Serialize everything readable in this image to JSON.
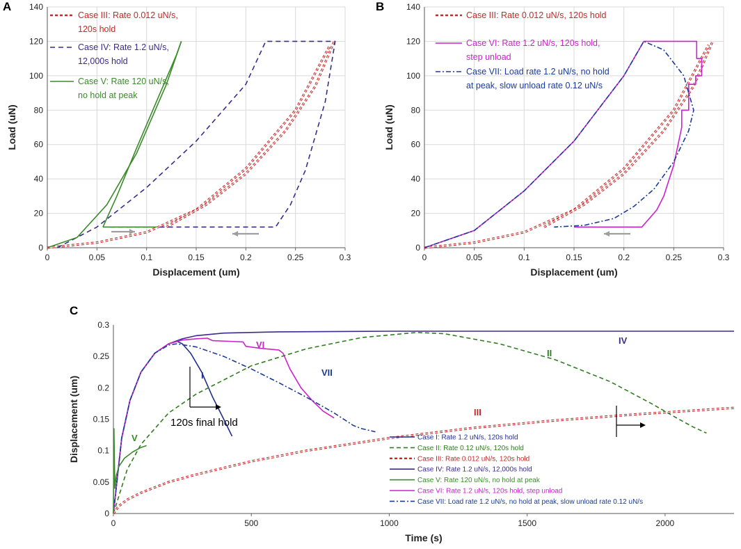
{
  "figure": {
    "colors": {
      "case1": "#1f2f8f",
      "case2": "#2e7d1e",
      "case3": "#c62828",
      "case4": "#3c2a8c",
      "case5": "#3a8a2a",
      "case6": "#cc22cc",
      "case7": "#1a3a9a",
      "arrow_gray": "#9e9e9e",
      "grid": "#d9d9d9"
    }
  },
  "chart_data": [
    {
      "panel": "A",
      "type": "line",
      "xlabel": "Displacement (um)",
      "ylabel": "Load (uN)",
      "xlim": [
        0,
        0.3
      ],
      "ylim": [
        0,
        140
      ],
      "xticks": [
        "0",
        "0.05",
        "0.1",
        "0.15",
        "0.2",
        "0.25",
        "0.3"
      ],
      "yticks": [
        "0",
        "20",
        "40",
        "60",
        "80",
        "100",
        "120",
        "140"
      ],
      "legend": [
        {
          "line1": "Case III: Rate 0.012 uN/s,",
          "line2": "120s hold",
          "series": "III"
        },
        {
          "line1": "Case IV: Rate 1.2 uN/s,",
          "line2": "12,000s hold",
          "series": "IV"
        },
        {
          "line1": "Case V: Rate 120 uN/s,",
          "line2": "no hold at peak",
          "series": "V"
        }
      ],
      "series": [
        {
          "name": "Case III load",
          "style": "III",
          "x": [
            0,
            0.05,
            0.1,
            0.15,
            0.2,
            0.25,
            0.285
          ],
          "y": [
            0,
            3,
            9,
            22,
            46,
            80,
            118
          ]
        },
        {
          "name": "Case III unload",
          "style": "III",
          "x": [
            0.12,
            0.16,
            0.2,
            0.24,
            0.27,
            0.289
          ],
          "y": [
            12,
            25,
            43,
            68,
            94,
            120
          ]
        },
        {
          "name": "Case IV",
          "style": "IV",
          "x": [
            0.01,
            0.05,
            0.1,
            0.15,
            0.2,
            0.22,
            0.29,
            0.28,
            0.26,
            0.245,
            0.23,
            0.06
          ],
          "y": [
            0,
            12,
            35,
            62,
            95,
            120,
            120,
            85,
            45,
            25,
            12,
            12
          ]
        },
        {
          "name": "Case V load",
          "style": "V",
          "x": [
            0,
            0.03,
            0.06,
            0.09,
            0.12,
            0.135
          ],
          "y": [
            0,
            6,
            25,
            55,
            95,
            120
          ]
        },
        {
          "name": "Case V unload",
          "style": "V",
          "x": [
            0.056,
            0.07,
            0.09,
            0.11,
            0.13,
            0.135
          ],
          "y": [
            12,
            30,
            58,
            85,
            112,
            120
          ]
        },
        {
          "name": "Case V hold",
          "style": "V",
          "x": [
            0.056,
            0.11
          ],
          "y": [
            12,
            12
          ]
        }
      ]
    },
    {
      "panel": "B",
      "type": "line",
      "xlabel": "Displacement (um)",
      "ylabel": "Load (uN)",
      "xlim": [
        0,
        0.3
      ],
      "ylim": [
        0,
        140
      ],
      "xticks": [
        "0",
        "0.05",
        "0.1",
        "0.15",
        "0.2",
        "0.25",
        "0.3"
      ],
      "yticks": [
        "0",
        "20",
        "40",
        "60",
        "80",
        "100",
        "120",
        "140"
      ],
      "legend": [
        {
          "line1": "Case III: Rate 0.012 uN/s, 120s hold",
          "line2": "",
          "series": "III"
        },
        {
          "line1": "Case VI: Rate 1.2 uN/s, 120s hold,",
          "line2": "step unload",
          "series": "VI"
        },
        {
          "line1": "Case VII: Load rate 1.2 uN/s, no hold",
          "line2": "at peak, slow unload rate 0.12 uN/s",
          "series": "VII"
        }
      ],
      "series": [
        {
          "name": "Case III load",
          "style": "III",
          "x": [
            0,
            0.05,
            0.1,
            0.15,
            0.2,
            0.25,
            0.285
          ],
          "y": [
            0,
            3,
            9,
            22,
            46,
            80,
            118
          ]
        },
        {
          "name": "Case III unload",
          "style": "III",
          "x": [
            0.12,
            0.16,
            0.2,
            0.24,
            0.27,
            0.289
          ],
          "y": [
            12,
            25,
            43,
            68,
            94,
            120
          ]
        },
        {
          "name": "Case VI",
          "style": "VI",
          "x": [
            0,
            0.05,
            0.1,
            0.15,
            0.2,
            0.22,
            0.273,
            0.273,
            0.278,
            0.278,
            0.272,
            0.272,
            0.265,
            0.265,
            0.258,
            0.258,
            0.25,
            0.24,
            0.233,
            0.218,
            0.15
          ],
          "y": [
            0,
            10,
            33,
            62,
            100,
            120,
            120,
            110,
            110,
            100,
            100,
            95,
            95,
            80,
            80,
            70,
            48,
            30,
            22,
            12,
            12
          ]
        },
        {
          "name": "Case VII",
          "style": "VII",
          "x": [
            0,
            0.05,
            0.1,
            0.15,
            0.2,
            0.22,
            0.24,
            0.26,
            0.27,
            0.265,
            0.25,
            0.23,
            0.21,
            0.19,
            0.16,
            0.13
          ],
          "y": [
            0,
            10,
            33,
            62,
            100,
            120,
            115,
            100,
            80,
            68,
            50,
            34,
            24,
            17,
            13,
            12
          ]
        }
      ]
    },
    {
      "panel": "C",
      "type": "line",
      "xlabel": "Time (s)",
      "ylabel": "Displacement (um)",
      "xlim": [
        0,
        2250
      ],
      "ylim": [
        0,
        0.3
      ],
      "xticks": [
        "0",
        "500",
        "1000",
        "1500",
        "2000"
      ],
      "yticks": [
        "0",
        "0.05",
        "0.1",
        "0.15",
        "0.2",
        "0.25",
        "0.3"
      ],
      "legend": [
        {
          "line1": "Case I: Rate 1.2 uN/s, 120s hold",
          "series": "I"
        },
        {
          "line1": "Case II: Rate 0.12 uN/s, 120s hold",
          "series": "II"
        },
        {
          "line1": "Case III: Rate 0.012 uN/s, 120s hold",
          "series": "III"
        },
        {
          "line1": "Case IV: Rate 1.2 uN/s, 12,000s hold",
          "series": "IV"
        },
        {
          "line1": "Case V: Rate 120 uN/s, no hold at peak",
          "series": "V"
        },
        {
          "line1": "Case VI: Rate 1.2 uN/s, 120s hold, step unload",
          "series": "VI"
        },
        {
          "line1": "Case VII: Load rate 1.2 uN/s, no hold at peak, slow unload rate 0.12 uN/s",
          "series": "VII"
        }
      ],
      "annotations": {
        "label_I": "I",
        "label_II": "II",
        "label_III": "III",
        "label_IV": "IV",
        "label_V": "V",
        "label_VI": "VI",
        "label_VII": "VII",
        "final_hold": "120s final hold"
      },
      "series": [
        {
          "name": "Case IV",
          "style": "IV",
          "x": [
            0,
            30,
            60,
            100,
            150,
            200,
            250,
            300,
            400,
            600,
            1000,
            2250
          ],
          "y": [
            0,
            0.12,
            0.18,
            0.225,
            0.255,
            0.27,
            0.278,
            0.283,
            0.287,
            0.289,
            0.29,
            0.29
          ]
        },
        {
          "name": "Case I",
          "style": "I",
          "x": [
            0,
            30,
            60,
            100,
            150,
            200,
            230,
            250,
            280,
            320,
            360,
            400,
            430
          ],
          "y": [
            0,
            0.12,
            0.18,
            0.225,
            0.255,
            0.27,
            0.274,
            0.27,
            0.255,
            0.225,
            0.185,
            0.15,
            0.123
          ]
        },
        {
          "name": "Case VI",
          "style": "VI",
          "x": [
            0,
            30,
            60,
            100,
            150,
            200,
            250,
            300,
            340,
            360,
            420,
            470,
            480,
            530,
            600,
            615,
            640,
            680,
            720,
            760,
            800
          ],
          "y": [
            0,
            0.12,
            0.18,
            0.225,
            0.255,
            0.27,
            0.276,
            0.278,
            0.279,
            0.275,
            0.274,
            0.273,
            0.266,
            0.263,
            0.26,
            0.255,
            0.23,
            0.2,
            0.18,
            0.163,
            0.152
          ]
        },
        {
          "name": "Case VII",
          "style": "VII",
          "x": [
            0,
            30,
            60,
            100,
            150,
            200,
            230,
            300,
            400,
            500,
            600,
            700,
            800,
            870,
            900,
            950
          ],
          "y": [
            0,
            0.12,
            0.18,
            0.225,
            0.255,
            0.268,
            0.27,
            0.265,
            0.25,
            0.23,
            0.208,
            0.185,
            0.16,
            0.14,
            0.135,
            0.13
          ]
        },
        {
          "name": "Case II",
          "style": "II",
          "x": [
            0,
            50,
            100,
            200,
            300,
            500,
            700,
            900,
            1100,
            1200,
            1400,
            1600,
            1800,
            1950,
            2050,
            2100,
            2150
          ],
          "y": [
            0,
            0.07,
            0.11,
            0.16,
            0.19,
            0.235,
            0.262,
            0.28,
            0.288,
            0.286,
            0.27,
            0.245,
            0.21,
            0.175,
            0.15,
            0.138,
            0.128
          ]
        },
        {
          "name": "Case III",
          "style": "III",
          "x": [
            0,
            20,
            50,
            100,
            200,
            300,
            500,
            700,
            1000,
            1300,
            1600,
            1900,
            2250
          ],
          "y": [
            0,
            0.012,
            0.022,
            0.033,
            0.05,
            0.062,
            0.083,
            0.1,
            0.12,
            0.136,
            0.148,
            0.158,
            0.168
          ]
        },
        {
          "name": "Case V",
          "style": "V",
          "x": [
            0,
            2,
            5,
            10,
            20,
            40,
            70,
            100,
            120
          ],
          "y": [
            0,
            0.135,
            0.04,
            0.06,
            0.075,
            0.088,
            0.098,
            0.105,
            0.108
          ]
        }
      ]
    }
  ]
}
